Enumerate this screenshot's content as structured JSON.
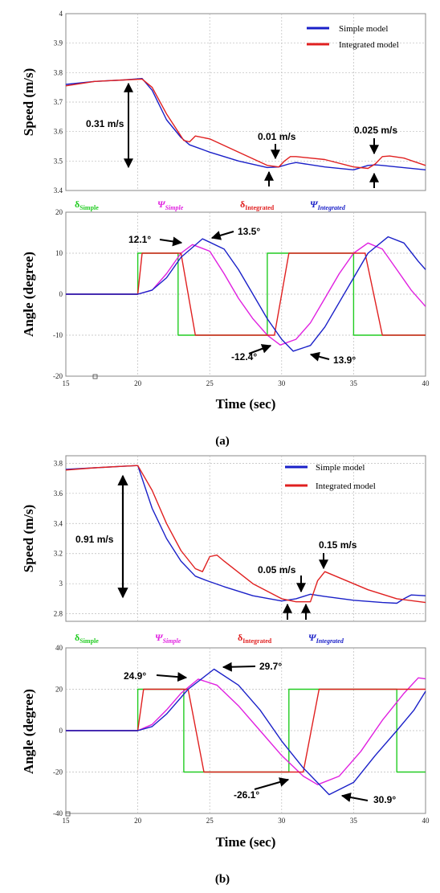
{
  "colors": {
    "green": "#22cc22",
    "magenta": "#e020e0",
    "red": "#e02020",
    "blue": "#1a20c8"
  },
  "chart_data": [
    {
      "panel": "(a)",
      "type": "line",
      "id": "a-speed",
      "ylabel": "Speed (m/s)",
      "xlim": [
        15,
        40
      ],
      "ylim": [
        3.4,
        4
      ],
      "yticks": [
        "3.4",
        "3.5",
        "3.6",
        "3.7",
        "3.8",
        "3.9",
        "4"
      ],
      "legend": [
        "Simple model",
        "Integrated model"
      ],
      "series": [
        {
          "name": "Simple model",
          "color": "blue",
          "points": [
            [
              15,
              3.76
            ],
            [
              17,
              3.77
            ],
            [
              19,
              3.775
            ],
            [
              20.3,
              3.78
            ],
            [
              21,
              3.74
            ],
            [
              22,
              3.64
            ],
            [
              23,
              3.58
            ],
            [
              23.6,
              3.555
            ],
            [
              25,
              3.53
            ],
            [
              27,
              3.5
            ],
            [
              29,
              3.478
            ],
            [
              29.8,
              3.48
            ],
            [
              30.5,
              3.49
            ],
            [
              31,
              3.495
            ],
            [
              33,
              3.48
            ],
            [
              35,
              3.47
            ],
            [
              36,
              3.485
            ],
            [
              36.5,
              3.487
            ],
            [
              37,
              3.485
            ],
            [
              38,
              3.48
            ],
            [
              40,
              3.47
            ]
          ]
        },
        {
          "name": "Integrated model",
          "color": "red",
          "points": [
            [
              15,
              3.755
            ],
            [
              17,
              3.77
            ],
            [
              19,
              3.775
            ],
            [
              20.3,
              3.778
            ],
            [
              21,
              3.75
            ],
            [
              22,
              3.66
            ],
            [
              23.2,
              3.57
            ],
            [
              23.6,
              3.565
            ],
            [
              24,
              3.585
            ],
            [
              25,
              3.575
            ],
            [
              27,
              3.53
            ],
            [
              29,
              3.485
            ],
            [
              29.8,
              3.48
            ],
            [
              30.2,
              3.5
            ],
            [
              30.6,
              3.515
            ],
            [
              31,
              3.515
            ],
            [
              33,
              3.505
            ],
            [
              35,
              3.48
            ],
            [
              36,
              3.475
            ],
            [
              36.5,
              3.49
            ],
            [
              37,
              3.515
            ],
            [
              37.5,
              3.517
            ],
            [
              38.5,
              3.51
            ],
            [
              40,
              3.485
            ]
          ]
        }
      ],
      "annotations": [
        "0.31 m/s",
        "0.01 m/s",
        "0.025 m/s"
      ]
    },
    {
      "panel": "(a)",
      "type": "line",
      "id": "a-angle",
      "ylabel": "Angle (degree)",
      "xlabel": "Time (sec)",
      "xlim": [
        15,
        40
      ],
      "ylim": [
        -20,
        20
      ],
      "xticks": [
        "15",
        "20",
        "25",
        "30",
        "35",
        "40"
      ],
      "yticks": [
        "-20",
        "-10",
        "0",
        "10",
        "20"
      ],
      "legend": [
        "δSimple",
        "ΨSimple",
        "δIntegrated",
        "ΨIntegrated"
      ],
      "series": [
        {
          "name": "δSimple",
          "color": "green",
          "points": [
            [
              15,
              0
            ],
            [
              20,
              0
            ],
            [
              20,
              10
            ],
            [
              22.8,
              10
            ],
            [
              22.8,
              -10
            ],
            [
              29,
              -10
            ],
            [
              29,
              10
            ],
            [
              35,
              10
            ],
            [
              35,
              -10
            ],
            [
              40,
              -10
            ]
          ]
        },
        {
          "name": "ΨSimple",
          "color": "magenta",
          "points": [
            [
              15,
              0
            ],
            [
              20,
              0
            ],
            [
              21,
              1
            ],
            [
              22,
              5
            ],
            [
              23,
              10
            ],
            [
              23.8,
              12.1
            ],
            [
              25,
              10.5
            ],
            [
              26,
              5
            ],
            [
              27,
              -1
            ],
            [
              28,
              -6
            ],
            [
              29,
              -10
            ],
            [
              29.9,
              -12.4
            ],
            [
              31,
              -11
            ],
            [
              32,
              -7
            ],
            [
              33,
              -1
            ],
            [
              34,
              5
            ],
            [
              35,
              10
            ],
            [
              36,
              12.5
            ],
            [
              37,
              11
            ],
            [
              38,
              6
            ],
            [
              39,
              1
            ],
            [
              40,
              -3
            ]
          ]
        },
        {
          "name": "δIntegrated",
          "color": "red",
          "points": [
            [
              15,
              0
            ],
            [
              20,
              0
            ],
            [
              20.3,
              10
            ],
            [
              23,
              10
            ],
            [
              24,
              -10
            ],
            [
              29.5,
              -10
            ],
            [
              30.5,
              10
            ],
            [
              35.8,
              10
            ],
            [
              37,
              -10
            ],
            [
              40,
              -10
            ]
          ]
        },
        {
          "name": "ΨIntegrated",
          "color": "blue",
          "points": [
            [
              15,
              0
            ],
            [
              20,
              0
            ],
            [
              21,
              1
            ],
            [
              22,
              4
            ],
            [
              23,
              9
            ],
            [
              24.5,
              13.5
            ],
            [
              26,
              11
            ],
            [
              27,
              6
            ],
            [
              28,
              0
            ],
            [
              29,
              -6
            ],
            [
              30,
              -11
            ],
            [
              30.8,
              -13.9
            ],
            [
              32,
              -12.5
            ],
            [
              33,
              -8
            ],
            [
              34,
              -2
            ],
            [
              35,
              4
            ],
            [
              36,
              10
            ],
            [
              37.4,
              14
            ],
            [
              38.5,
              12.5
            ],
            [
              39.5,
              8
            ],
            [
              40,
              6
            ]
          ]
        }
      ],
      "annotations": [
        "12.1°",
        "13.5°",
        "-12.4°",
        "13.9°"
      ]
    },
    {
      "panel": "(b)",
      "type": "line",
      "id": "b-speed",
      "ylabel": "Speed (m/s)",
      "xlim": [
        15,
        40
      ],
      "ylim": [
        2.75,
        3.85
      ],
      "yticks": [
        "2.8",
        "3",
        "3.2",
        "3.4",
        "3.6",
        "3.8"
      ],
      "legend": [
        "Simple model",
        "Integrated model"
      ],
      "series": [
        {
          "name": "Simple model",
          "color": "blue",
          "points": [
            [
              15,
              3.76
            ],
            [
              17,
              3.77
            ],
            [
              19,
              3.78
            ],
            [
              20,
              3.785
            ],
            [
              21,
              3.5
            ],
            [
              22,
              3.3
            ],
            [
              23,
              3.15
            ],
            [
              24,
              3.05
            ],
            [
              24.8,
              3.02
            ],
            [
              26,
              2.98
            ],
            [
              28,
              2.92
            ],
            [
              30,
              2.885
            ],
            [
              31,
              2.9
            ],
            [
              32,
              2.93
            ],
            [
              33,
              2.915
            ],
            [
              35,
              2.89
            ],
            [
              37,
              2.875
            ],
            [
              38,
              2.87
            ],
            [
              38.5,
              2.9
            ],
            [
              39,
              2.925
            ],
            [
              40,
              2.92
            ]
          ]
        },
        {
          "name": "Integrated model",
          "color": "red",
          "points": [
            [
              15,
              3.755
            ],
            [
              17,
              3.77
            ],
            [
              19,
              3.78
            ],
            [
              20,
              3.785
            ],
            [
              21,
              3.62
            ],
            [
              22,
              3.4
            ],
            [
              23,
              3.22
            ],
            [
              24,
              3.1
            ],
            [
              24.5,
              3.08
            ],
            [
              25,
              3.18
            ],
            [
              25.5,
              3.19
            ],
            [
              26,
              3.15
            ],
            [
              28,
              3.0
            ],
            [
              30,
              2.9
            ],
            [
              31,
              2.88
            ],
            [
              32,
              2.88
            ],
            [
              32.5,
              3.02
            ],
            [
              33,
              3.08
            ],
            [
              34,
              3.04
            ],
            [
              36,
              2.96
            ],
            [
              38,
              2.9
            ],
            [
              40,
              2.875
            ]
          ]
        }
      ],
      "annotations": [
        "0.91 m/s",
        "0.05 m/s",
        "0.15 m/s"
      ]
    },
    {
      "panel": "(b)",
      "type": "line",
      "id": "b-angle",
      "ylabel": "Angle (degree)",
      "xlabel": "Time (sec)",
      "xlim": [
        15,
        40
      ],
      "ylim": [
        -40,
        40
      ],
      "xticks": [
        "15",
        "20",
        "25",
        "30",
        "35",
        "40"
      ],
      "yticks": [
        "-40",
        "-20",
        "0",
        "20",
        "40"
      ],
      "legend": [
        "δSimple",
        "ΨSimple",
        "δIntegrated",
        "ΨIntegrated"
      ],
      "series": [
        {
          "name": "δSimple",
          "color": "green",
          "points": [
            [
              15,
              0
            ],
            [
              20,
              0
            ],
            [
              20,
              20
            ],
            [
              23.2,
              20
            ],
            [
              23.2,
              -20
            ],
            [
              30.5,
              -20
            ],
            [
              30.5,
              20
            ],
            [
              38,
              20
            ],
            [
              38,
              -20
            ],
            [
              40,
              -20
            ]
          ]
        },
        {
          "name": "ΨSimple",
          "color": "magenta",
          "points": [
            [
              15,
              0
            ],
            [
              20,
              0
            ],
            [
              21,
              3
            ],
            [
              22,
              10
            ],
            [
              23,
              18
            ],
            [
              24.2,
              24.9
            ],
            [
              25.5,
              22
            ],
            [
              27,
              12
            ],
            [
              28.5,
              0
            ],
            [
              30,
              -12
            ],
            [
              31.5,
              -22
            ],
            [
              32.5,
              -26.1
            ],
            [
              34,
              -22
            ],
            [
              35.5,
              -10
            ],
            [
              37,
              5
            ],
            [
              38.5,
              18
            ],
            [
              39.5,
              25.5
            ],
            [
              40,
              25
            ]
          ]
        },
        {
          "name": "δIntegrated",
          "color": "red",
          "points": [
            [
              15,
              0
            ],
            [
              20,
              0
            ],
            [
              20.4,
              20
            ],
            [
              23.5,
              20
            ],
            [
              24.6,
              -20
            ],
            [
              31.5,
              -20
            ],
            [
              32.6,
              20
            ],
            [
              40,
              20
            ]
          ]
        },
        {
          "name": "ΨIntegrated",
          "color": "blue",
          "points": [
            [
              15,
              0
            ],
            [
              20,
              0
            ],
            [
              21,
              2
            ],
            [
              22,
              8
            ],
            [
              23.5,
              20
            ],
            [
              25.3,
              29.7
            ],
            [
              27,
              22
            ],
            [
              28.5,
              10
            ],
            [
              30,
              -5
            ],
            [
              31.5,
              -18
            ],
            [
              33.3,
              -30.9
            ],
            [
              35,
              -25
            ],
            [
              36.5,
              -12
            ],
            [
              38,
              0
            ],
            [
              39.2,
              10
            ],
            [
              40,
              19
            ]
          ]
        }
      ],
      "annotations": [
        "24.9°",
        "29.7°",
        "-26.1°",
        "30.9°"
      ]
    }
  ],
  "ui": {
    "a": {
      "speed_ylabel": "Speed (m/s)",
      "angle_ylabel": "Angle (degree)",
      "xlabel": "Time (sec)",
      "leg1": "Simple  model",
      "leg2": "Integrated  model",
      "ann_031": "0.31 m/s",
      "ann_001": "0.01 m/s",
      "ann_0025": "0.025 m/s",
      "ann_121": "12.1°",
      "ann_135": "13.5°",
      "ann_n124": "-12.4°",
      "ann_139": "13.9°",
      "label": "(a)"
    },
    "b": {
      "speed_ylabel": "Speed (m/s)",
      "angle_ylabel": "Angle (degree)",
      "xlabel": "Time (sec)",
      "leg1": "Simple model",
      "leg2": "Integrated model",
      "ann_091": "0.91 m/s",
      "ann_005": "0.05 m/s",
      "ann_015": "0.15 m/s",
      "ann_249": "24.9°",
      "ann_297": "29.7°",
      "ann_n261": "-26.1°",
      "ann_309": "30.9°",
      "label": "(b)"
    },
    "sym": {
      "delta": "δ",
      "psi": "Ψ",
      "simple": "Simple",
      "integrated": "Integrated"
    }
  }
}
